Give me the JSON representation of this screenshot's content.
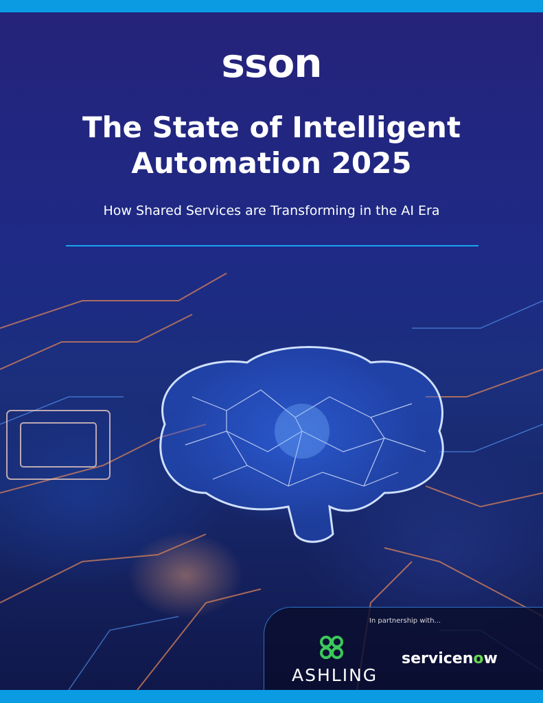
{
  "logo": {
    "text": "sson"
  },
  "title": {
    "line1": "The State of Intelligent",
    "line2": "Automation 2025"
  },
  "subtitle": "How Shared Services are Transforming in the AI Era",
  "partnership": {
    "label": "In partnership with...",
    "partners": [
      {
        "name": "ASHLING"
      },
      {
        "name_main": "servicen",
        "name_o": "o",
        "name_end": "w"
      }
    ]
  },
  "colors": {
    "accent_bar": "#0a9be3",
    "rule": "#1aa3f0",
    "servicenow_green": "#62d84e",
    "ashling_green": "#3cc85a"
  }
}
